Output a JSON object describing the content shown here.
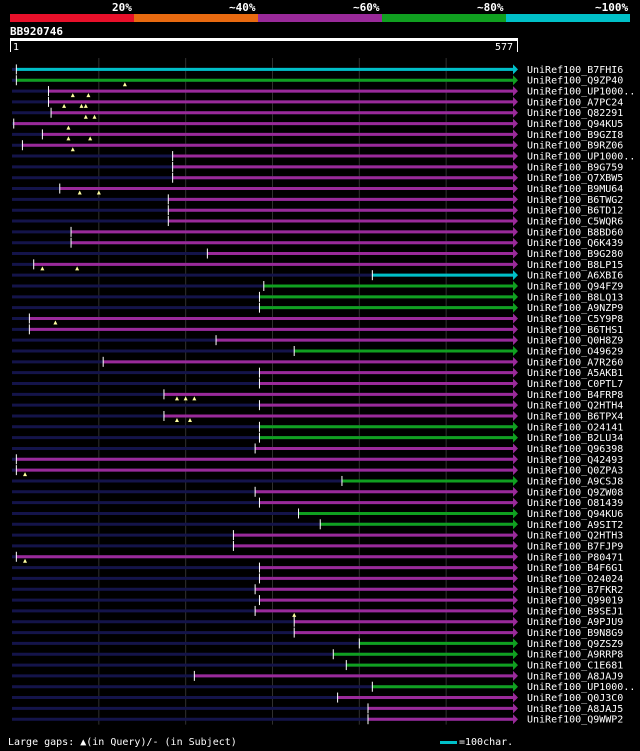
{
  "legend": {
    "items": [
      {
        "label": "",
        "color": "#e8102a"
      },
      {
        "label": "20%",
        "color": "#e86a10"
      },
      {
        "label": "~40%",
        "color": "#9a2a9a"
      },
      {
        "label": "~60%",
        "color": "#10a020"
      },
      {
        "label": "~80%",
        "color": "#00c0c8"
      },
      {
        "label": "~100%",
        "color": ""
      }
    ]
  },
  "query": {
    "name": "BB920746",
    "start_label": "1",
    "end_label": "577",
    "length": 577
  },
  "footer": {
    "gaps_text": "Large gaps: ▲(in Query)/- (in Subject)",
    "scale_text": "=100char."
  },
  "colors": {
    "purple": "#9a2a9a",
    "green": "#10a020",
    "cyan": "#00c0c8",
    "faint": "#14144a",
    "guide": "#303030"
  },
  "hits": [
    {
      "name": "UniRef100_B7FHI6",
      "start": 5,
      "color": "cyan",
      "markers": []
    },
    {
      "name": "UniRef100_Q9ZP40",
      "start": 5,
      "color": "green",
      "markers": [
        130
      ]
    },
    {
      "name": "UniRef100_UP1000..",
      "start": 42,
      "color": "purple",
      "markers": [
        70,
        88
      ]
    },
    {
      "name": "UniRef100_A7PC24",
      "start": 42,
      "color": "purple",
      "markers": [
        60,
        80,
        85
      ]
    },
    {
      "name": "UniRef100_Q82291",
      "start": 45,
      "color": "purple",
      "markers": [
        85,
        95
      ]
    },
    {
      "name": "UniRef100_Q94KU5",
      "start": 2,
      "color": "purple",
      "markers": [
        65
      ]
    },
    {
      "name": "UniRef100_B9GZI8",
      "start": 35,
      "color": "purple",
      "markers": [
        65,
        90
      ]
    },
    {
      "name": "UniRef100_B9RZ06",
      "start": 12,
      "color": "purple",
      "markers": [
        70
      ]
    },
    {
      "name": "UniRef100_UP1000..",
      "start": 185,
      "color": "purple",
      "markers": []
    },
    {
      "name": "UniRef100_B9G759",
      "start": 185,
      "color": "purple",
      "markers": []
    },
    {
      "name": "UniRef100_Q7XBW5",
      "start": 185,
      "color": "purple",
      "markers": []
    },
    {
      "name": "UniRef100_B9MU64",
      "start": 55,
      "color": "purple",
      "markers": [
        78,
        100
      ]
    },
    {
      "name": "UniRef100_B6TWG2",
      "start": 180,
      "color": "purple",
      "markers": []
    },
    {
      "name": "UniRef100_B6TD12",
      "start": 180,
      "color": "purple",
      "markers": []
    },
    {
      "name": "UniRef100_C5WQR6",
      "start": 180,
      "color": "purple",
      "markers": []
    },
    {
      "name": "UniRef100_B8BD60",
      "start": 68,
      "color": "purple",
      "markers": []
    },
    {
      "name": "UniRef100_Q6K439",
      "start": 68,
      "color": "purple",
      "markers": []
    },
    {
      "name": "UniRef100_B9G280",
      "start": 225,
      "color": "purple",
      "markers": []
    },
    {
      "name": "UniRef100_B8LP15",
      "start": 25,
      "color": "purple",
      "markers": [
        35,
        75
      ]
    },
    {
      "name": "UniRef100_A6XBI6",
      "start": 415,
      "color": "cyan",
      "markers": []
    },
    {
      "name": "UniRef100_Q94FZ9",
      "start": 290,
      "color": "green",
      "markers": []
    },
    {
      "name": "UniRef100_B8LQ13",
      "start": 285,
      "color": "green",
      "markers": []
    },
    {
      "name": "UniRef100_A9NZP9",
      "start": 285,
      "color": "green",
      "markers": []
    },
    {
      "name": "UniRef100_C5Y9P8",
      "start": 20,
      "color": "purple",
      "markers": [
        50
      ]
    },
    {
      "name": "UniRef100_B6THS1",
      "start": 20,
      "color": "purple",
      "markers": []
    },
    {
      "name": "UniRef100_Q0H8Z9",
      "start": 235,
      "color": "purple",
      "markers": []
    },
    {
      "name": "UniRef100_O49629",
      "start": 325,
      "color": "green",
      "markers": []
    },
    {
      "name": "UniRef100_A7R260",
      "start": 105,
      "color": "purple",
      "markers": []
    },
    {
      "name": "UniRef100_A5AKB1",
      "start": 285,
      "color": "purple",
      "markers": []
    },
    {
      "name": "UniRef100_C0PTL7",
      "start": 285,
      "color": "purple",
      "markers": []
    },
    {
      "name": "UniRef100_B4FRP8",
      "start": 175,
      "color": "purple",
      "markers": [
        190,
        200,
        210
      ]
    },
    {
      "name": "UniRef100_Q2HTH4",
      "start": 285,
      "color": "purple",
      "markers": []
    },
    {
      "name": "UniRef100_B6TPX4",
      "start": 175,
      "color": "purple",
      "markers": [
        190,
        205
      ]
    },
    {
      "name": "UniRef100_O24141",
      "start": 285,
      "color": "green",
      "markers": []
    },
    {
      "name": "UniRef100_B2LU34",
      "start": 285,
      "color": "green",
      "markers": []
    },
    {
      "name": "UniRef100_Q96398",
      "start": 280,
      "color": "purple",
      "markers": []
    },
    {
      "name": "UniRef100_Q42493",
      "start": 5,
      "color": "purple",
      "markers": []
    },
    {
      "name": "UniRef100_Q0ZPA3",
      "start": 5,
      "color": "purple",
      "markers": [
        15
      ]
    },
    {
      "name": "UniRef100_A9CSJ8",
      "start": 380,
      "color": "green",
      "markers": []
    },
    {
      "name": "UniRef100_Q9ZW08",
      "start": 280,
      "color": "purple",
      "markers": []
    },
    {
      "name": "UniRef100_O81439",
      "start": 285,
      "color": "purple",
      "markers": []
    },
    {
      "name": "UniRef100_Q94KU6",
      "start": 330,
      "color": "green",
      "markers": []
    },
    {
      "name": "UniRef100_A9SIT2",
      "start": 355,
      "color": "green",
      "markers": []
    },
    {
      "name": "UniRef100_Q2HTH3",
      "start": 255,
      "color": "purple",
      "markers": []
    },
    {
      "name": "UniRef100_B7FJP9",
      "start": 255,
      "color": "purple",
      "markers": []
    },
    {
      "name": "UniRef100_P80471",
      "start": 5,
      "color": "purple",
      "markers": [
        15
      ]
    },
    {
      "name": "UniRef100_B4F6G1",
      "start": 285,
      "color": "purple",
      "markers": []
    },
    {
      "name": "UniRef100_O24024",
      "start": 285,
      "color": "purple",
      "markers": []
    },
    {
      "name": "UniRef100_B7FKR2",
      "start": 280,
      "color": "purple",
      "markers": []
    },
    {
      "name": "UniRef100_Q99019",
      "start": 285,
      "color": "purple",
      "markers": []
    },
    {
      "name": "UniRef100_B9SEJ1",
      "start": 280,
      "color": "purple",
      "markers": [
        325
      ]
    },
    {
      "name": "UniRef100_A9PJU9",
      "start": 325,
      "color": "purple",
      "markers": []
    },
    {
      "name": "UniRef100_B9N8G9",
      "start": 325,
      "color": "purple",
      "markers": []
    },
    {
      "name": "UniRef100_Q9ZSZ9",
      "start": 400,
      "color": "green",
      "markers": []
    },
    {
      "name": "UniRef100_A9RRP8",
      "start": 370,
      "color": "green",
      "markers": []
    },
    {
      "name": "UniRef100_C1E681",
      "start": 385,
      "color": "green",
      "markers": []
    },
    {
      "name": "UniRef100_A8JAJ9",
      "start": 210,
      "color": "purple",
      "markers": []
    },
    {
      "name": "UniRef100_UP1000..",
      "start": 415,
      "color": "green",
      "markers": []
    },
    {
      "name": "UniRef100_Q0J3C0",
      "start": 375,
      "color": "purple",
      "markers": []
    },
    {
      "name": "UniRef100_A8JAJ5",
      "start": 410,
      "color": "purple",
      "markers": []
    },
    {
      "name": "UniRef100_Q9WWP2",
      "start": 410,
      "color": "purple",
      "markers": []
    }
  ]
}
